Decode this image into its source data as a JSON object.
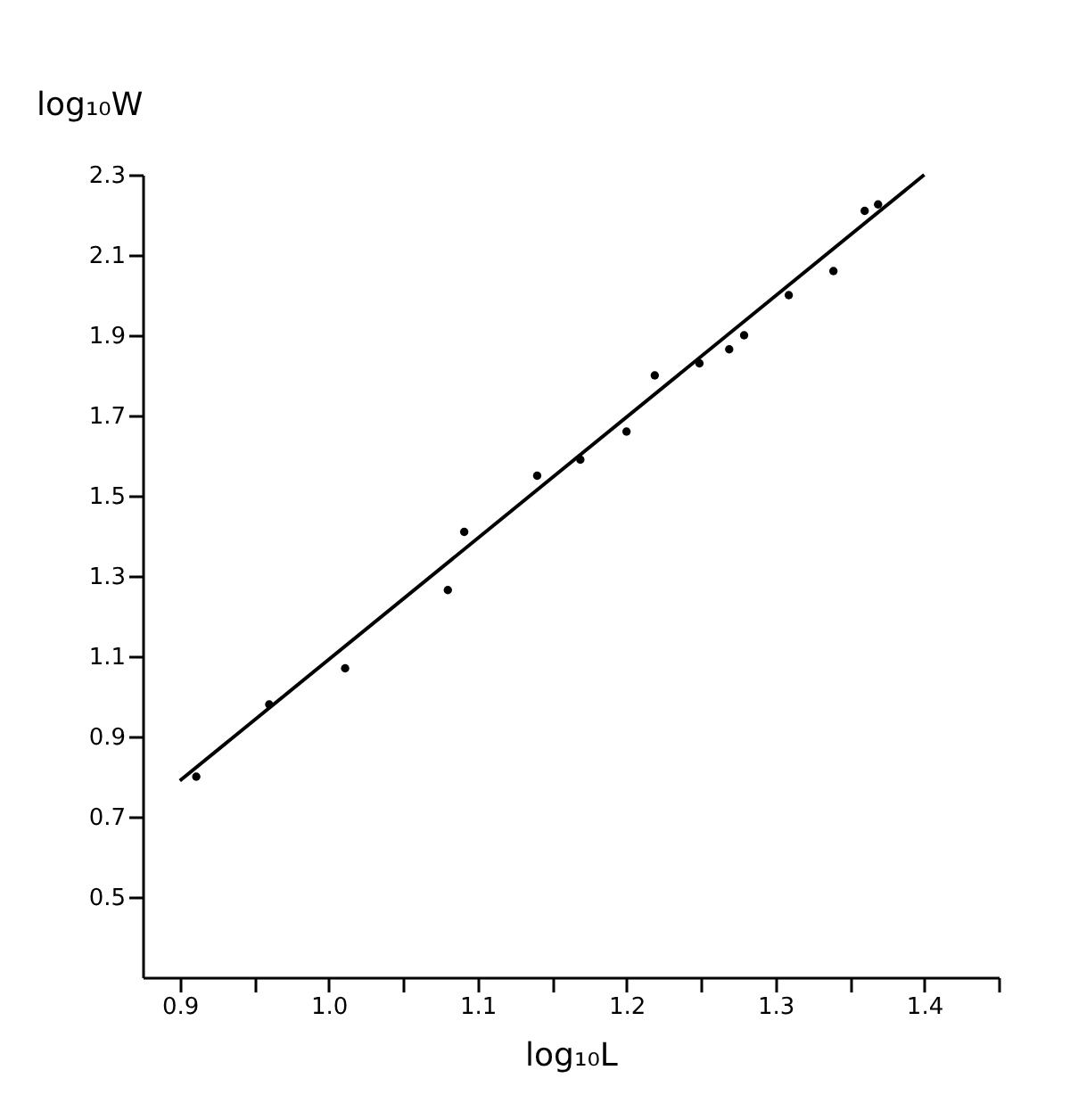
{
  "chart_data": {
    "type": "scatter",
    "xlabel": "log₁₀L",
    "ylabel": "log₁₀W",
    "xlim": [
      0.875,
      1.45
    ],
    "ylim": [
      0.3,
      2.3
    ],
    "xticks": [
      0.9,
      {
        "value": 0.95,
        "label": null
      },
      {
        "value": 1.0,
        "label": "1.0"
      },
      {
        "value": 1.05,
        "label": null
      },
      1.1,
      {
        "value": 1.15,
        "label": null
      },
      1.2,
      {
        "value": 1.25,
        "label": null
      },
      1.3,
      {
        "value": 1.35,
        "label": null
      },
      1.4,
      {
        "value": 1.45,
        "label": null
      }
    ],
    "yticks": [
      0.5,
      0.7,
      0.9,
      1.1,
      1.3,
      1.5,
      1.7,
      1.9,
      2.1,
      2.3
    ],
    "grid": false,
    "series": [
      {
        "marker": "circle",
        "color": "#000000",
        "x": [
          0.911,
          0.96,
          1.011,
          1.08,
          1.091,
          1.14,
          1.169,
          1.2,
          1.219,
          1.249,
          1.269,
          1.279,
          1.309,
          1.339,
          1.36,
          1.369
        ],
        "values": [
          0.8,
          0.98,
          1.07,
          1.265,
          1.41,
          1.55,
          1.59,
          1.66,
          1.8,
          1.83,
          1.865,
          1.9,
          2.0,
          2.06,
          2.21,
          2.226
        ]
      },
      {
        "type": "line",
        "marker": "none",
        "color": "#000000",
        "line_style": "solid",
        "x": [
          0.9,
          1.4
        ],
        "values": [
          0.79,
          2.3
        ]
      }
    ]
  }
}
